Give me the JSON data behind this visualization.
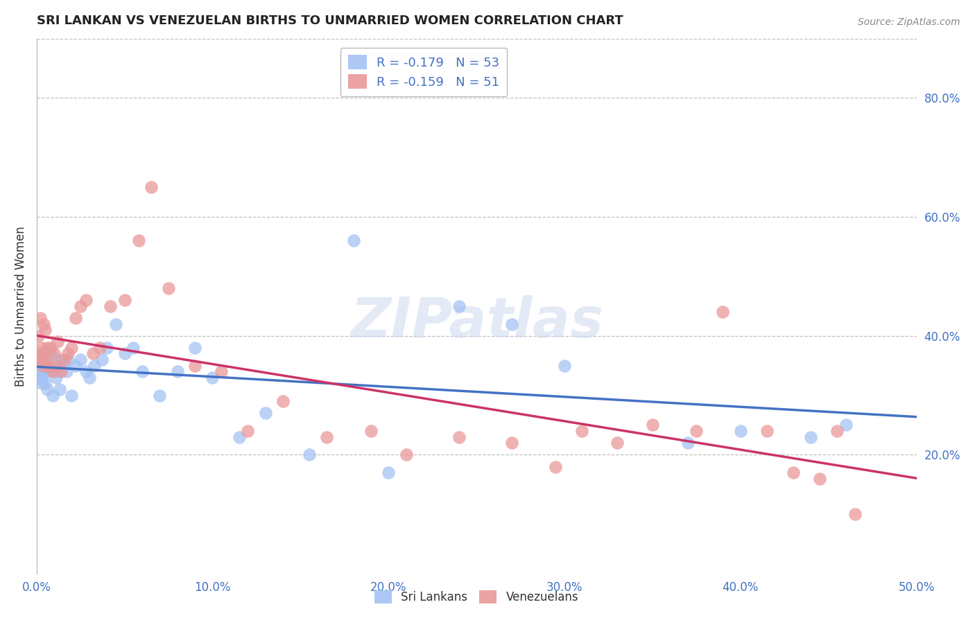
{
  "title": "SRI LANKAN VS VENEZUELAN BIRTHS TO UNMARRIED WOMEN CORRELATION CHART",
  "source": "Source: ZipAtlas.com",
  "ylabel": "Births to Unmarried Women",
  "watermark": "ZIPatlas",
  "xlim": [
    0.0,
    0.5
  ],
  "ylim": [
    0.0,
    0.9
  ],
  "xticks": [
    0.0,
    0.1,
    0.2,
    0.3,
    0.4,
    0.5
  ],
  "xtick_labels": [
    "0.0%",
    "10.0%",
    "20.0%",
    "30.0%",
    "40.0%",
    "50.0%"
  ],
  "yticks": [
    0.2,
    0.4,
    0.6,
    0.8
  ],
  "ytick_labels": [
    "20.0%",
    "40.0%",
    "60.0%",
    "80.0%"
  ],
  "sri_lanka_R": -0.179,
  "sri_lanka_N": 53,
  "venezuela_R": -0.159,
  "venezuela_N": 51,
  "sri_lanka_color": "#a4c2f4",
  "venezuela_color": "#ea9999",
  "sri_lanka_line_color": "#4472c4",
  "venezuela_line_color": "#cc3366",
  "background_color": "#ffffff",
  "grid_color": "#c0c0c0",
  "title_color": "#222222",
  "axis_label_color": "#333333",
  "tick_color": "#4472c4",
  "source_color": "#888888",
  "sri_lanka_x": [
    0.001,
    0.001,
    0.002,
    0.002,
    0.003,
    0.003,
    0.003,
    0.004,
    0.004,
    0.005,
    0.005,
    0.006,
    0.006,
    0.007,
    0.008,
    0.009,
    0.01,
    0.01,
    0.011,
    0.012,
    0.013,
    0.014,
    0.015,
    0.017,
    0.018,
    0.02,
    0.022,
    0.025,
    0.028,
    0.03,
    0.033,
    0.037,
    0.04,
    0.045,
    0.05,
    0.055,
    0.06,
    0.07,
    0.08,
    0.09,
    0.1,
    0.115,
    0.13,
    0.155,
    0.18,
    0.2,
    0.24,
    0.27,
    0.3,
    0.37,
    0.4,
    0.44,
    0.46
  ],
  "sri_lanka_y": [
    0.35,
    0.33,
    0.36,
    0.34,
    0.35,
    0.33,
    0.32,
    0.34,
    0.37,
    0.34,
    0.32,
    0.35,
    0.31,
    0.34,
    0.37,
    0.3,
    0.34,
    0.36,
    0.33,
    0.34,
    0.31,
    0.36,
    0.35,
    0.34,
    0.36,
    0.3,
    0.35,
    0.36,
    0.34,
    0.33,
    0.35,
    0.36,
    0.38,
    0.42,
    0.37,
    0.38,
    0.34,
    0.3,
    0.34,
    0.38,
    0.33,
    0.23,
    0.27,
    0.2,
    0.56,
    0.17,
    0.45,
    0.42,
    0.35,
    0.22,
    0.24,
    0.23,
    0.25
  ],
  "venezuela_x": [
    0.001,
    0.001,
    0.002,
    0.002,
    0.003,
    0.003,
    0.004,
    0.004,
    0.005,
    0.005,
    0.006,
    0.007,
    0.008,
    0.009,
    0.01,
    0.011,
    0.012,
    0.014,
    0.016,
    0.018,
    0.02,
    0.022,
    0.025,
    0.028,
    0.032,
    0.036,
    0.042,
    0.05,
    0.058,
    0.065,
    0.075,
    0.09,
    0.105,
    0.12,
    0.14,
    0.165,
    0.19,
    0.21,
    0.24,
    0.27,
    0.295,
    0.31,
    0.33,
    0.35,
    0.375,
    0.39,
    0.415,
    0.43,
    0.445,
    0.455,
    0.465
  ],
  "venezuela_y": [
    0.36,
    0.4,
    0.37,
    0.43,
    0.36,
    0.38,
    0.35,
    0.42,
    0.36,
    0.41,
    0.38,
    0.35,
    0.38,
    0.34,
    0.37,
    0.35,
    0.39,
    0.34,
    0.36,
    0.37,
    0.38,
    0.43,
    0.45,
    0.46,
    0.37,
    0.38,
    0.45,
    0.46,
    0.56,
    0.65,
    0.48,
    0.35,
    0.34,
    0.24,
    0.29,
    0.23,
    0.24,
    0.2,
    0.23,
    0.22,
    0.18,
    0.24,
    0.22,
    0.25,
    0.24,
    0.44,
    0.24,
    0.17,
    0.16,
    0.24,
    0.1
  ]
}
